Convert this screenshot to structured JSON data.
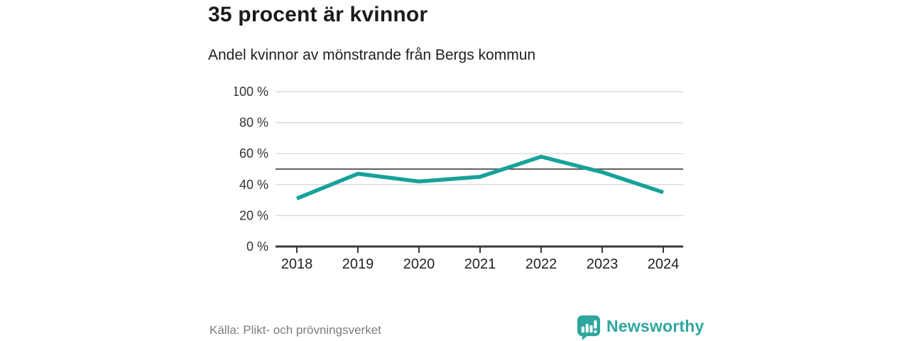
{
  "header": {
    "title": "35 procent är kvinnor",
    "subtitle": "Andel kvinnor av mönstrande från Bergs kommun"
  },
  "footer": {
    "source": "Källa: Plikt- och prövningsverket",
    "brand": "Newsworthy"
  },
  "icons": {
    "logo": "newsworthy-speech-bubble-bar-chart-icon"
  },
  "colors": {
    "line": "#16a29a",
    "brand_teal": "#2ea79e",
    "grid": "#dcdcdc",
    "reference_line": "#5f5f5f",
    "axis": "#3a3a3a",
    "tick_text": "#333333",
    "title_text": "#1a1a1a",
    "muted_text": "#7d7c82"
  },
  "chart_data": {
    "type": "line",
    "title": "35 procent är kvinnor",
    "subtitle": "Andel kvinnor av mönstrande från Bergs kommun",
    "categories": [
      "2018",
      "2019",
      "2020",
      "2021",
      "2022",
      "2023",
      "2024"
    ],
    "series": [
      {
        "name": "Andel kvinnor av mönstrande",
        "values": [
          31,
          47,
          42,
          45,
          58,
          48,
          35
        ]
      }
    ],
    "ylim": [
      0,
      100
    ],
    "yticks": [
      0,
      20,
      40,
      60,
      80,
      100
    ],
    "ytick_labels": [
      "0 %",
      "20 %",
      "40 %",
      "60 %",
      "80 %",
      "100 %"
    ],
    "reference_line": 50,
    "grid": true,
    "legend": "none",
    "unit": "%"
  }
}
